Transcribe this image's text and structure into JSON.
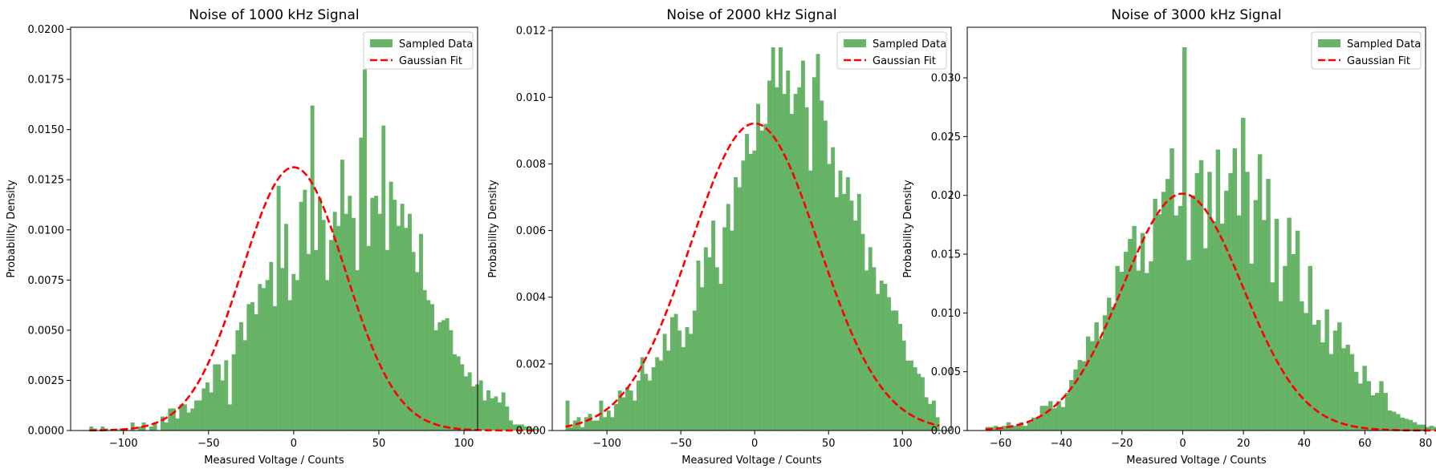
{
  "colors": {
    "bar": "#4CA64C",
    "fit": "#FF0000",
    "axis": "#000000",
    "background": "#FFFFFF"
  },
  "chart_data": [
    {
      "type": "bar",
      "title": "Noise of 1000 kHz Signal",
      "xlabel": "Measured Voltage / Counts",
      "ylabel": "Probability Density",
      "xlim": [
        -131,
        108
      ],
      "ylim": [
        0,
        0.0201
      ],
      "xticks": [
        -100,
        -50,
        0,
        50,
        100
      ],
      "yticks": [
        0.0,
        0.0025,
        0.005,
        0.0075,
        0.01,
        0.0125,
        0.015,
        0.0175,
        0.02
      ],
      "ytick_labels": [
        "0.0000",
        "0.0025",
        "0.0050",
        "0.0075",
        "0.0100",
        "0.0125",
        "0.0150",
        "0.0175",
        "0.0200"
      ],
      "bin_start": -120,
      "bin_width": 2.2,
      "values": [
        0.0002,
        0.0001,
        0,
        0.0002,
        0.0001,
        0,
        0,
        0,
        0.0001,
        0,
        0,
        0.0004,
        0,
        0.0002,
        0.0004,
        0,
        0.0002,
        0.0004,
        0,
        0.0007,
        0.0004,
        0.0011,
        0.0011,
        0.0006,
        0.0013,
        0.0013,
        0.0009,
        0.0011,
        0.0015,
        0.0015,
        0.0021,
        0.0024,
        0.0019,
        0.0033,
        0.0033,
        0.0025,
        0.0035,
        0.0013,
        0.0038,
        0.005,
        0.0054,
        0.0045,
        0.0063,
        0.0064,
        0.0058,
        0.0073,
        0.0071,
        0.0075,
        0.0084,
        0.0062,
        0.0122,
        0.0081,
        0.0103,
        0.0065,
        0.0078,
        0.0075,
        0.0114,
        0.012,
        0.0088,
        0.0162,
        0.009,
        0.0116,
        0.0105,
        0.0075,
        0.0095,
        0.0109,
        0.0102,
        0.0135,
        0.0108,
        0.0117,
        0.0106,
        0.008,
        0.0146,
        0.018,
        0.0092,
        0.0116,
        0.0117,
        0.0108,
        0.0152,
        0.009,
        0.0124,
        0.0115,
        0.0102,
        0.0113,
        0.0101,
        0.0108,
        0.0089,
        0.0079,
        0.0098,
        0.007,
        0.0065,
        0.0063,
        0.005,
        0.0054,
        0.0055,
        0.0056,
        0.005,
        0.0038,
        0.0037,
        0.0033,
        0.0027,
        0.0029,
        0.0022,
        0.0023,
        0.0025,
        0.0015,
        0.002,
        0.0016,
        0.0017,
        0.0014,
        0.0019,
        0.0012,
        0.0005,
        0.0003,
        0.0003,
        0.0003,
        0.0002,
        0.0002,
        0.0001,
        0.0001
      ],
      "fit": {
        "mean": 0,
        "std": 30.4
      },
      "series": [
        {
          "name": "Sampled Data"
        },
        {
          "name": "Gaussian Fit"
        }
      ],
      "legend": "top-right",
      "grid": false
    },
    {
      "type": "bar",
      "title": "Noise of 2000 kHz Signal",
      "xlabel": "Measured Voltage / Counts",
      "ylabel": "Probability Density",
      "xlim": [
        -137,
        133
      ],
      "ylim": [
        0,
        0.0121
      ],
      "xticks": [
        -100,
        -50,
        0,
        50,
        100
      ],
      "yticks": [
        0,
        0.002,
        0.004,
        0.006,
        0.008,
        0.01,
        0.012
      ],
      "ytick_labels": [
        "0.000",
        "0.002",
        "0.004",
        "0.006",
        "0.008",
        "0.010",
        "0.012"
      ],
      "bin_start": -128,
      "bin_width": 2.53,
      "values": [
        0.0009,
        0.0001,
        0.0003,
        0.0004,
        0.0001,
        0.0004,
        0.0005,
        0.0003,
        0.0003,
        0.0009,
        0.0004,
        0.0006,
        0.0004,
        0.0008,
        0.0012,
        0.001,
        0.0013,
        0.0012,
        0.0009,
        0.0015,
        0.0022,
        0.0017,
        0.0015,
        0.0019,
        0.0022,
        0.0021,
        0.0029,
        0.0024,
        0.0034,
        0.0035,
        0.003,
        0.0025,
        0.0031,
        0.0029,
        0.0036,
        0.0051,
        0.0043,
        0.0055,
        0.0052,
        0.0063,
        0.0049,
        0.0044,
        0.0061,
        0.0068,
        0.006,
        0.0076,
        0.0073,
        0.0081,
        0.0089,
        0.0083,
        0.0084,
        0.0098,
        0.009,
        0.0092,
        0.0105,
        0.0115,
        0.0103,
        0.0115,
        0.0101,
        0.0108,
        0.0095,
        0.0101,
        0.0103,
        0.0111,
        0.0097,
        0.0078,
        0.0106,
        0.0113,
        0.0099,
        0.0093,
        0.008,
        0.0085,
        0.007,
        0.0078,
        0.0071,
        0.0076,
        0.0069,
        0.0063,
        0.0071,
        0.0059,
        0.0048,
        0.0055,
        0.0049,
        0.0041,
        0.0045,
        0.0044,
        0.004,
        0.0036,
        0.0036,
        0.0032,
        0.0027,
        0.0021,
        0.0021,
        0.0019,
        0.0017,
        0.0016,
        0.001,
        0.0008,
        0.0009,
        0.0004
      ],
      "fit": {
        "mean": 0,
        "std": 43.3
      },
      "series": [
        {
          "name": "Sampled Data"
        },
        {
          "name": "Gaussian Fit"
        }
      ],
      "legend": "top-right",
      "grid": false
    },
    {
      "type": "bar",
      "title": "Noise of 3000 kHz Signal",
      "xlabel": "Measured Voltage / Counts",
      "ylabel": "Probability Density",
      "xlim": [
        -71,
        80
      ],
      "ylim": [
        0,
        0.0343
      ],
      "xticks": [
        -60,
        -40,
        -20,
        0,
        20,
        40,
        60,
        80
      ],
      "yticks": [
        0,
        0.005,
        0.01,
        0.015,
        0.02,
        0.025,
        0.03
      ],
      "ytick_labels": [
        "0.000",
        "0.005",
        "0.010",
        "0.015",
        "0.020",
        "0.025",
        "0.030"
      ],
      "bin_start": -65,
      "bin_width": 1.38,
      "values": [
        0.0003,
        0.0003,
        0.0004,
        0.0003,
        0.0004,
        0.0007,
        0.0004,
        0.0004,
        0.0007,
        0.0004,
        0.0007,
        0.0011,
        0.0011,
        0.0021,
        0.0021,
        0.0025,
        0.0019,
        0.0025,
        0.002,
        0.0032,
        0.0043,
        0.0052,
        0.006,
        0.0059,
        0.008,
        0.0076,
        0.0092,
        0.0078,
        0.0098,
        0.0113,
        0.0105,
        0.014,
        0.0135,
        0.0152,
        0.0163,
        0.0174,
        0.0136,
        0.0168,
        0.0134,
        0.0144,
        0.0197,
        0.0184,
        0.0203,
        0.0214,
        0.024,
        0.0183,
        0.0191,
        0.0326,
        0.0145,
        0.02,
        0.0219,
        0.023,
        0.0155,
        0.022,
        0.0178,
        0.0239,
        0.0176,
        0.0204,
        0.0219,
        0.024,
        0.0183,
        0.0266,
        0.022,
        0.0142,
        0.0196,
        0.0235,
        0.0179,
        0.0214,
        0.0126,
        0.018,
        0.011,
        0.014,
        0.0181,
        0.015,
        0.017,
        0.011,
        0.01,
        0.014,
        0.009,
        0.0094,
        0.0075,
        0.0103,
        0.0065,
        0.0085,
        0.0092,
        0.007,
        0.0073,
        0.0065,
        0.005,
        0.004,
        0.0055,
        0.0042,
        0.003,
        0.0032,
        0.0042,
        0.0032,
        0.0017,
        0.0016,
        0.0014,
        0.0011,
        0.001,
        0.0009,
        0.0007,
        0.0005,
        0.0005,
        0.0003,
        0.0004,
        0.0003,
        0.0001,
        0.0003
      ],
      "fit": {
        "mean": 0,
        "std": 19.8
      },
      "series": [
        {
          "name": "Sampled Data"
        },
        {
          "name": "Gaussian Fit"
        }
      ],
      "legend": "top-right",
      "grid": false
    }
  ]
}
